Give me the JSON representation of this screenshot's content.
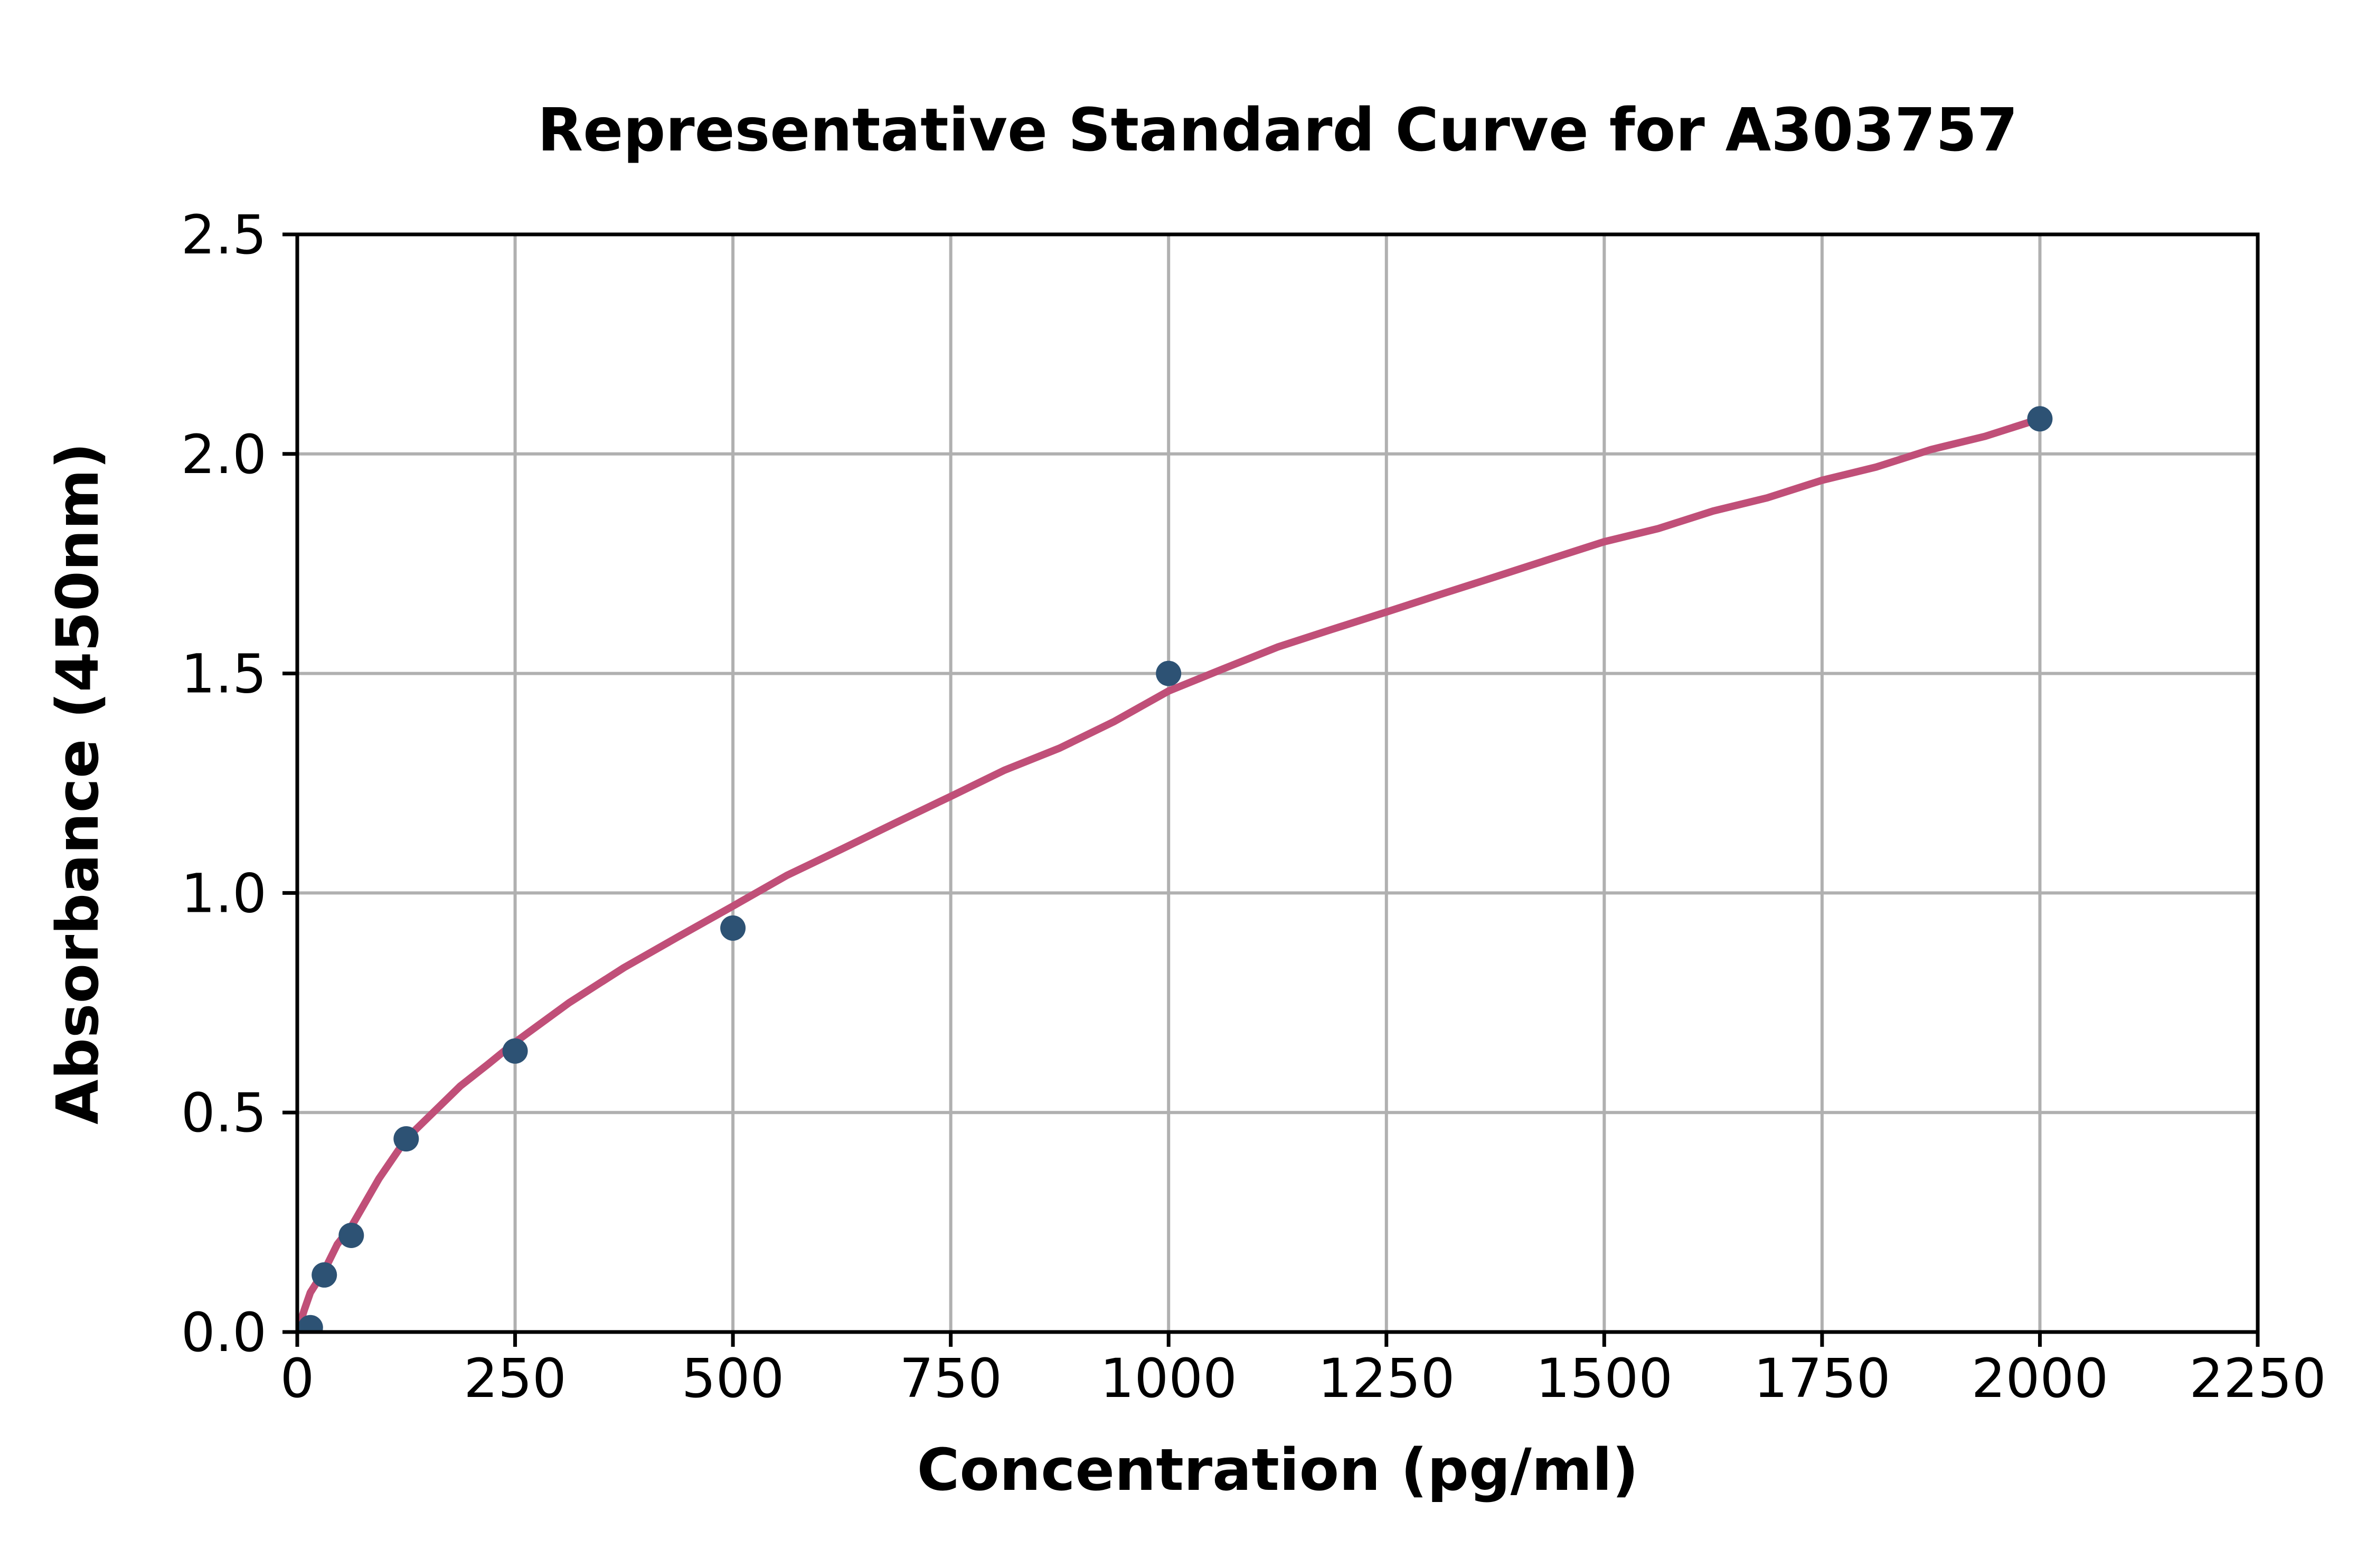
{
  "figure": {
    "background": "#ffffff"
  },
  "chart_data": {
    "type": "scatter",
    "title": "Representative Standard Curve for A303757",
    "xlabel": "Concentration (pg/ml)",
    "ylabel": "Absorbance (450nm)",
    "xlim": [
      0,
      2250
    ],
    "ylim": [
      0.0,
      2.5
    ],
    "grid": true,
    "legend": "none",
    "xticks": {
      "values": [
        0,
        250,
        500,
        750,
        1000,
        1250,
        1500,
        1750,
        2000,
        2250
      ],
      "labels": [
        "0",
        "250",
        "500",
        "750",
        "1000",
        "1250",
        "1500",
        "1750",
        "2000",
        "2250"
      ]
    },
    "yticks": {
      "values": [
        0.0,
        0.5,
        1.0,
        1.5,
        2.0,
        2.5
      ],
      "labels": [
        "0.0",
        "0.5",
        "1.0",
        "1.5",
        "2.0",
        "2.5"
      ]
    },
    "points": [
      {
        "x": 15,
        "y": 0.01
      },
      {
        "x": 31,
        "y": 0.13
      },
      {
        "x": 62,
        "y": 0.22
      },
      {
        "x": 125,
        "y": 0.44
      },
      {
        "x": 250,
        "y": 0.64
      },
      {
        "x": 500,
        "y": 0.92
      },
      {
        "x": 1000,
        "y": 1.5
      },
      {
        "x": 2000,
        "y": 2.08
      }
    ],
    "fit_curve": {
      "x": [
        0,
        8,
        15,
        31,
        46,
        62,
        94,
        125,
        156,
        187,
        219,
        250,
        312,
        375,
        437,
        500,
        562,
        625,
        687,
        750,
        812,
        875,
        937,
        1000,
        1062,
        1125,
        1187,
        1250,
        1312,
        1375,
        1437,
        1500,
        1562,
        1625,
        1687,
        1750,
        1812,
        1875,
        1937,
        2000
      ],
      "y": [
        0.0,
        0.05,
        0.09,
        0.14,
        0.2,
        0.24,
        0.35,
        0.44,
        0.5,
        0.56,
        0.61,
        0.66,
        0.75,
        0.83,
        0.9,
        0.97,
        1.04,
        1.1,
        1.16,
        1.22,
        1.28,
        1.33,
        1.39,
        1.46,
        1.51,
        1.56,
        1.6,
        1.64,
        1.68,
        1.72,
        1.76,
        1.8,
        1.83,
        1.87,
        1.9,
        1.94,
        1.97,
        2.01,
        2.04,
        2.08
      ]
    },
    "colors": {
      "marker": "#2d5274",
      "curve": "#c04f78",
      "grid": "#b0b0b0",
      "axis": "#000000",
      "text": "#000000",
      "background": "#ffffff"
    }
  }
}
